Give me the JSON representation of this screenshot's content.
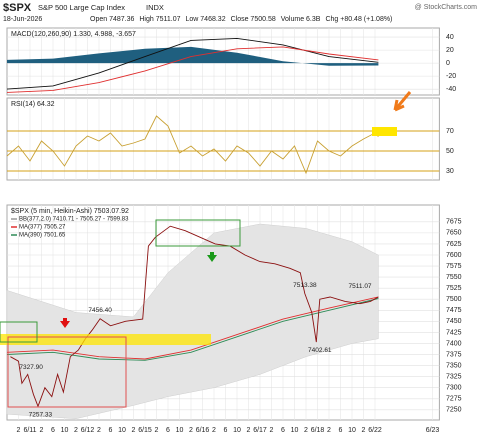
{
  "header": {
    "symbol": "$SPX",
    "name": "S&P 500 Large Cap Index",
    "exchange": "INDX",
    "date": "18-Jun-2026",
    "quote": [
      "Open 7487.36",
      "High 7511.07",
      "Low 7468.32",
      "Close 7500.58",
      "Volume 6.3B",
      "Chg +80.48 (+1.08%)"
    ],
    "watermark": "@ StockCharts.com"
  },
  "chart_data": [
    {
      "type": "line",
      "title": "MACD(120,260,90) 1.330, 4.988, -3.657",
      "xlim": [
        -1,
        36.6
      ],
      "ylim": [
        -49,
        54
      ],
      "yticks": [
        -40,
        -20,
        0,
        20,
        40
      ],
      "grid": true,
      "series": [
        {
          "type": "area",
          "color": "#1f5f7f",
          "x": [
            -1,
            3,
            7,
            11,
            15,
            19,
            23,
            27,
            31.3
          ],
          "values": [
            5,
            7,
            15,
            22,
            25,
            16,
            3,
            -4,
            -3.657
          ]
        },
        {
          "type": "line",
          "color": "#111111",
          "x": [
            -1,
            3,
            7,
            11,
            15,
            19,
            23,
            27,
            31.3
          ],
          "values": [
            -40,
            -35,
            -15,
            10,
            35,
            38,
            28,
            10,
            1.33
          ]
        },
        {
          "type": "line",
          "color": "#e03030",
          "x": [
            -1,
            3,
            7,
            11,
            15,
            19,
            23,
            27,
            31.3
          ],
          "values": [
            -45,
            -42,
            -30,
            -12,
            10,
            22,
            25,
            14,
            4.988
          ]
        }
      ]
    },
    {
      "type": "line",
      "title": "RSI(14) 64.32",
      "xlim": [
        -1,
        36.6
      ],
      "ylim": [
        21,
        103
      ],
      "yticks": [
        30,
        50,
        70
      ],
      "grid": true,
      "grid_color": "#d4a017",
      "series": [
        {
          "type": "line",
          "color": "#c8a032",
          "x": [
            -1,
            0,
            1,
            2,
            3,
            4,
            5,
            6,
            7,
            8,
            9,
            10,
            11,
            12,
            13,
            14,
            15,
            16,
            17,
            18,
            19,
            20,
            21,
            22,
            23,
            24,
            25,
            26,
            27,
            28,
            29,
            30,
            31,
            31.3
          ],
          "values": [
            45,
            55,
            40,
            60,
            50,
            35,
            55,
            65,
            60,
            68,
            55,
            58,
            62,
            85,
            75,
            48,
            55,
            45,
            52,
            40,
            55,
            48,
            35,
            50,
            42,
            55,
            28,
            60,
            50,
            45,
            55,
            62,
            68,
            64.32
          ]
        }
      ]
    },
    {
      "type": "line",
      "title": "$SPX (5 min, Heikin-Ashi) 7503.07.92",
      "xlim": [
        -1,
        36.6
      ],
      "ylim": [
        7227,
        7713
      ],
      "yticks": [
        7250,
        7275,
        7300,
        7325,
        7350,
        7375,
        7400,
        7425,
        7450,
        7475,
        7500,
        7525,
        7550,
        7575,
        7600,
        7625,
        7650,
        7675
      ],
      "grid": true,
      "xticks": [
        {
          "value": 0,
          "label": "2"
        },
        {
          "value": 1,
          "label": "6/11"
        },
        {
          "value": 2,
          "label": "2"
        },
        {
          "value": 3,
          "label": "6"
        },
        {
          "value": 4,
          "label": "10"
        },
        {
          "value": 5,
          "label": "2"
        },
        {
          "value": 6,
          "label": "6/12"
        },
        {
          "value": 7,
          "label": "2"
        },
        {
          "value": 8,
          "label": "6"
        },
        {
          "value": 9,
          "label": "10"
        },
        {
          "value": 10,
          "label": "2"
        },
        {
          "value": 11,
          "label": "6/15"
        },
        {
          "value": 12,
          "label": "2"
        },
        {
          "value": 13,
          "label": "6"
        },
        {
          "value": 14,
          "label": "10"
        },
        {
          "value": 15,
          "label": "2"
        },
        {
          "value": 16,
          "label": "6/16"
        },
        {
          "value": 17,
          "label": "2"
        },
        {
          "value": 18,
          "label": "6"
        },
        {
          "value": 19,
          "label": "10"
        },
        {
          "value": 20,
          "label": "2"
        },
        {
          "value": 21,
          "label": "6/17"
        },
        {
          "value": 22,
          "label": "2"
        },
        {
          "value": 23,
          "label": "6"
        },
        {
          "value": 24,
          "label": "10"
        },
        {
          "value": 25,
          "label": "2"
        },
        {
          "value": 26,
          "label": "6/18"
        },
        {
          "value": 27,
          "label": "2"
        },
        {
          "value": 28,
          "label": "6"
        },
        {
          "value": 29,
          "label": "10"
        },
        {
          "value": 30,
          "label": "2"
        },
        {
          "value": 31,
          "label": "6/22"
        },
        {
          "value": 36,
          "label": "6/23"
        }
      ],
      "series": [
        {
          "type": "band",
          "name": "BB(377,2.0) 7410.71 - 7505.27 - 7599.83",
          "color": "#e4e4e4",
          "x": [
            -1,
            5,
            10,
            13,
            17,
            21,
            25,
            29,
            31.3
          ],
          "upper": [
            7520,
            7470,
            7460,
            7560,
            7650,
            7670,
            7660,
            7630,
            7599.83
          ],
          "lower": [
            7240,
            7230,
            7260,
            7280,
            7300,
            7330,
            7370,
            7400,
            7410.71
          ]
        },
        {
          "type": "line",
          "name": "MA(377) 7505.27",
          "color": "#e03030",
          "x": [
            -1,
            3,
            7,
            11,
            15,
            19,
            23,
            27,
            31.3
          ],
          "values": [
            7380,
            7385,
            7370,
            7365,
            7385,
            7420,
            7455,
            7480,
            7505.27
          ]
        },
        {
          "type": "line",
          "name": "MA(390) 7501.65",
          "color": "#2e8b57",
          "x": [
            -1,
            3,
            7,
            11,
            15,
            19,
            23,
            27,
            31.3
          ],
          "values": [
            7375,
            7380,
            7365,
            7362,
            7380,
            7415,
            7450,
            7475,
            7501.65
          ]
        },
        {
          "type": "line",
          "color": "#8b1010",
          "x": [
            -0.7,
            0,
            0.3,
            0.8,
            1.3,
            1.7,
            2.3,
            2.9,
            3.4,
            3.9,
            4.5,
            5.2,
            5.8,
            6.4,
            7.1,
            8.0,
            9.3,
            10.8,
            11.3,
            11.9,
            13.2,
            14.5,
            15.8,
            17.1,
            18.4,
            19.7,
            21.0,
            22.3,
            23.6,
            24.5,
            24.9,
            25.5,
            25.9,
            26.2,
            27.1,
            28.4,
            29.7,
            30.6,
            31.3
          ],
          "values": [
            7370,
            7360,
            7310,
            7330,
            7285,
            7258,
            7300,
            7280,
            7330,
            7290,
            7370,
            7385,
            7410,
            7430,
            7456,
            7440,
            7450,
            7455,
            7620,
            7640,
            7665,
            7655,
            7640,
            7625,
            7620,
            7600,
            7585,
            7580,
            7570,
            7560,
            7513,
            7470,
            7403,
            7500,
            7505,
            7495,
            7490,
            7495,
            7505
          ]
        }
      ],
      "annotations": [
        {
          "text": "7456.40",
          "x": 7.1,
          "y": 7456.4,
          "position": "above"
        },
        {
          "text": "7327.90",
          "x": 1.1,
          "y": 7327.9,
          "position": "above"
        },
        {
          "text": "7257.33",
          "x": 1.9,
          "y": 7257.33,
          "position": "below"
        },
        {
          "text": "7513.38",
          "x": 24.9,
          "y": 7513.38,
          "position": "above"
        },
        {
          "text": "7402.61",
          "x": 26.2,
          "y": 7402.61,
          "position": "below"
        },
        {
          "text": "7511.07",
          "x": 29.7,
          "y": 7511.07,
          "position": "above"
        }
      ]
    }
  ]
}
